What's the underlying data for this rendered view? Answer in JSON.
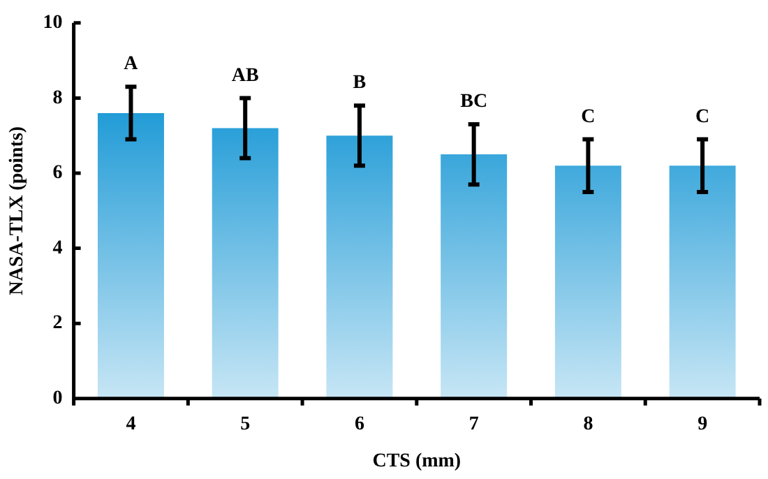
{
  "chart_data": {
    "type": "bar",
    "xlabel": "CTS (mm)",
    "ylabel": "NASA-TLX (points)",
    "categories": [
      "4",
      "5",
      "6",
      "7",
      "8",
      "9"
    ],
    "values": [
      7.6,
      7.2,
      7.0,
      6.5,
      6.2,
      6.2
    ],
    "errors": [
      0.7,
      0.8,
      0.8,
      0.8,
      0.7,
      0.7
    ],
    "color": "#1e9ad6",
    "ylim": [
      0,
      10
    ],
    "yticks": [
      0,
      2,
      4,
      6,
      8,
      10
    ],
    "grid": false,
    "legend": false,
    "annotations": [
      "A",
      "AB",
      "B",
      "BC",
      "C",
      "C"
    ]
  }
}
